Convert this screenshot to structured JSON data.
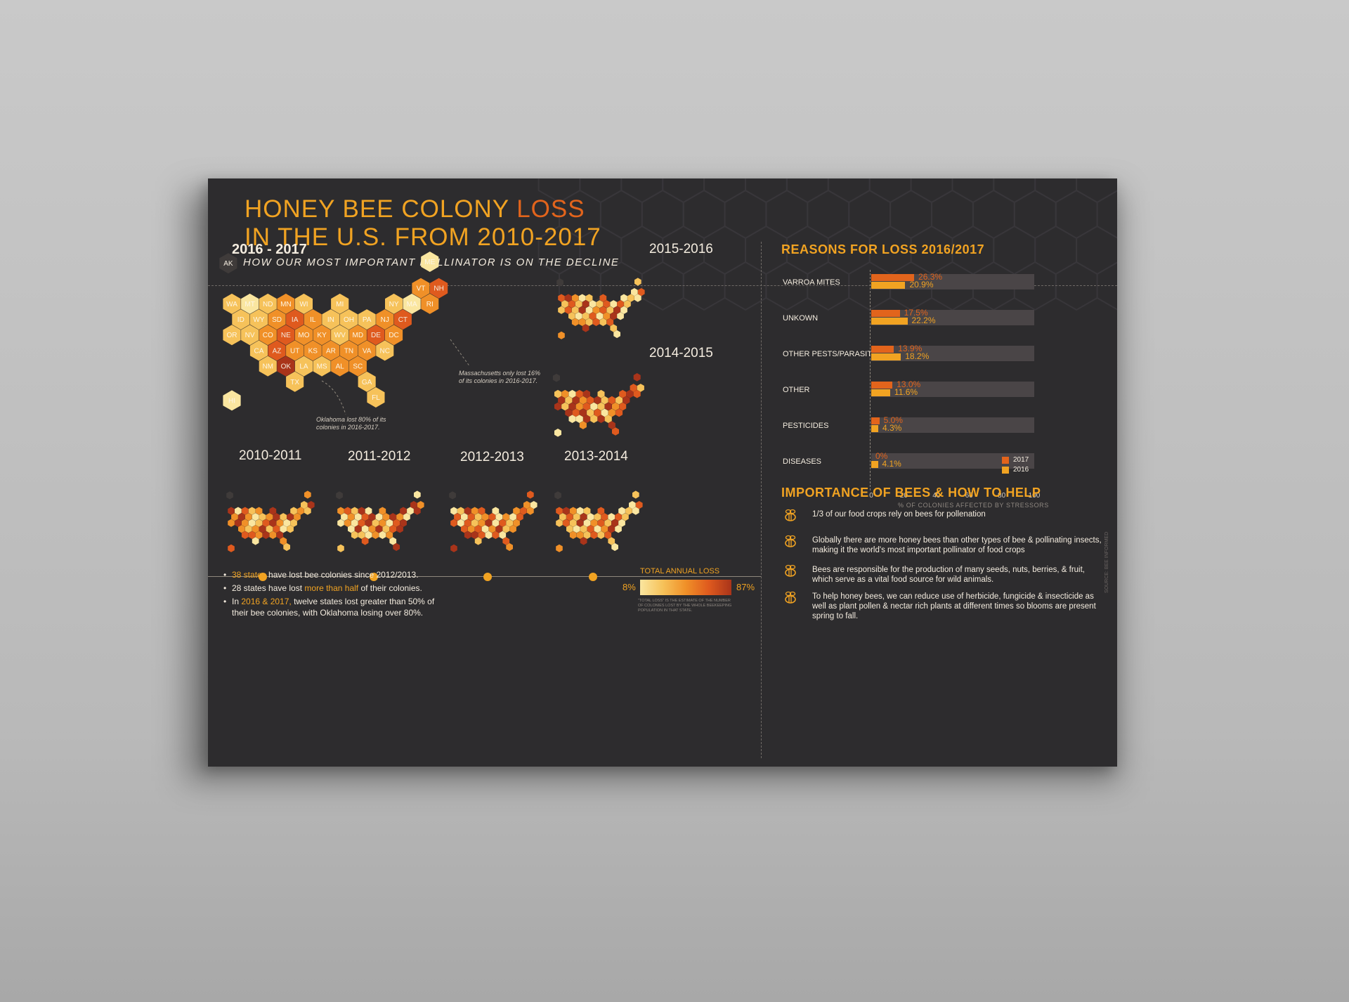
{
  "title": {
    "line1_a": "HONEY BEE COLONY ",
    "line1_b": "LOSS",
    "line2": "IN THE U.S. FROM 2010-2017"
  },
  "subtitle": "HOW OUR MOST IMPORTANT POLLINATOR IS ON THE DECLINE",
  "years": {
    "main": "2016 - 2017",
    "y1516": "2015-2016",
    "y1415": "2014-2015",
    "y1011": "2010-2011",
    "y1112": "2011-2012",
    "y1213": "2012-2013",
    "y1314": "2013-2014"
  },
  "colors": {
    "background": "#2d2c2e",
    "accent": "#f1a322",
    "accent_dark": "#e2641c",
    "scale": [
      "#fae6a0",
      "#f6c25a",
      "#f09028",
      "#df5a1e",
      "#a9341a"
    ]
  },
  "main_map": {
    "states": [
      {
        "code": "AK",
        "loss": 0
      },
      {
        "code": "ME",
        "loss": 1
      },
      {
        "code": "VT",
        "loss": 3
      },
      {
        "code": "NH",
        "loss": 4
      },
      {
        "code": "WA",
        "loss": 2
      },
      {
        "code": "MT",
        "loss": 1
      },
      {
        "code": "ND",
        "loss": 2
      },
      {
        "code": "MN",
        "loss": 3
      },
      {
        "code": "WI",
        "loss": 2
      },
      {
        "code": "MI",
        "loss": 2
      },
      {
        "code": "NY",
        "loss": 2
      },
      {
        "code": "MA",
        "loss": 1
      },
      {
        "code": "RI",
        "loss": 3
      },
      {
        "code": "ID",
        "loss": 2
      },
      {
        "code": "WY",
        "loss": 2
      },
      {
        "code": "SD",
        "loss": 3
      },
      {
        "code": "IA",
        "loss": 4
      },
      {
        "code": "IL",
        "loss": 3
      },
      {
        "code": "IN",
        "loss": 2
      },
      {
        "code": "OH",
        "loss": 2
      },
      {
        "code": "PA",
        "loss": 2
      },
      {
        "code": "NJ",
        "loss": 3
      },
      {
        "code": "CT",
        "loss": 4
      },
      {
        "code": "OR",
        "loss": 2
      },
      {
        "code": "NV",
        "loss": 2
      },
      {
        "code": "CO",
        "loss": 3
      },
      {
        "code": "NE",
        "loss": 4
      },
      {
        "code": "MO",
        "loss": 3
      },
      {
        "code": "KY",
        "loss": 3
      },
      {
        "code": "WV",
        "loss": 2
      },
      {
        "code": "MD",
        "loss": 3
      },
      {
        "code": "DE",
        "loss": 4
      },
      {
        "code": "DC",
        "loss": 3
      },
      {
        "code": "CA",
        "loss": 2
      },
      {
        "code": "AZ",
        "loss": 4
      },
      {
        "code": "UT",
        "loss": 3
      },
      {
        "code": "KS",
        "loss": 3
      },
      {
        "code": "AR",
        "loss": 3
      },
      {
        "code": "TN",
        "loss": 3
      },
      {
        "code": "VA",
        "loss": 3
      },
      {
        "code": "NC",
        "loss": 2
      },
      {
        "code": "NM",
        "loss": 2
      },
      {
        "code": "OK",
        "loss": 5
      },
      {
        "code": "LA",
        "loss": 2
      },
      {
        "code": "MS",
        "loss": 2
      },
      {
        "code": "AL",
        "loss": 3
      },
      {
        "code": "SC",
        "loss": 3
      },
      {
        "code": "TX",
        "loss": 2
      },
      {
        "code": "GA",
        "loss": 2
      },
      {
        "code": "HI",
        "loss": 1
      },
      {
        "code": "FL",
        "loss": 2
      }
    ],
    "annotations": {
      "massachusetts": "Massachusetts only lost 16% of its colonies in 2016-2017.",
      "oklahoma": "Oklahoma lost 80% of its colonies in 2016-2017."
    }
  },
  "facts": {
    "b1_a": "38 states",
    "b1_b": " have lost bee colonies since 2012/2013.",
    "b2_a": "28 states have lost ",
    "b2_b": "more than half",
    "b2_c": " of their colonies.",
    "b3_a": "In ",
    "b3_b": "2016 & 2017,",
    "b3_c": " twelve states lost greater than 50% of their bee colonies, with Oklahoma losing over 80%."
  },
  "legend_scale": {
    "title": "TOTAL ANNUAL LOSS",
    "min": "8%",
    "max": "87%",
    "note": "\"TOTAL LOSS\" IS THE ESTIMATE OF THE NUMBER OF COLONIES LOST BY THE WHOLE BEEKEEPING POPULATION IN THAT STATE."
  },
  "reasons_title": "REASONS FOR LOSS 2016/2017",
  "chart_data": {
    "type": "bar",
    "title": "REASONS FOR LOSS 2016/2017",
    "categories": [
      "VARROA MITES",
      "UNKOWN",
      "OTHER PESTS/PARASITES",
      "OTHER",
      "PESTICIDES",
      "DISEASES"
    ],
    "series": [
      {
        "name": "2017",
        "values": [
          26.3,
          17.5,
          13.9,
          13.0,
          5.0,
          0
        ],
        "labels": [
          "26.3%",
          "17.5%",
          "13.9%",
          "13.0%",
          "5.0%",
          "0%"
        ],
        "color": "#e2641c"
      },
      {
        "name": "2016",
        "values": [
          20.9,
          22.2,
          18.2,
          11.6,
          4.3,
          4.1
        ],
        "labels": [
          "20.9%",
          "22.2%",
          "18.2%",
          "11.6%",
          "4.3%",
          "4.1%"
        ],
        "color": "#f1a322"
      }
    ],
    "xticks": [
      "0",
      "20",
      "40",
      "60",
      "80",
      "100"
    ],
    "xlim": [
      0,
      100
    ],
    "xlabel": "% OF COLONIES AFFECTED BY STRESSORS",
    "legend": "bottom-right",
    "orientation": "horizontal"
  },
  "help": {
    "title": "IMPORTANCE OF BEES & HOW TO HELP",
    "tips": [
      "1/3 of our food crops rely on bees for pollenation",
      "Globally there are more honey bees than other types of bee & pollinating insects, making it the world's most important pollinator of food crops",
      "Bees are responsible for the production of many seeds, nuts, berries, & fruit, which serve as a vital food source for wild animals.",
      "To help honey bees, we can reduce use of herbicide, fungicide & insecticide as well as plant pollen & nectar rich plants at different times so blooms are present spring to fall."
    ]
  },
  "source": "SOURCE: BEE INFORMED"
}
